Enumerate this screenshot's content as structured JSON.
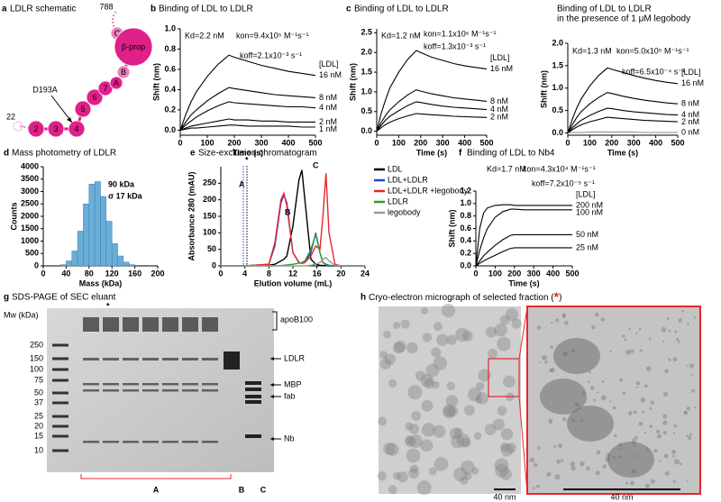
{
  "schematic": {
    "panel": "a",
    "title": "LDLR schematic",
    "domains": [
      "2",
      "3",
      "4",
      "5",
      "6",
      "7",
      "A",
      "B",
      "C",
      "β-prop"
    ],
    "mutation": "D193A",
    "n_term": "22",
    "c_term": "788"
  },
  "chart_data": [
    {
      "type": "line",
      "panel": "b",
      "title": "Binding of LDL to LDLR",
      "x_label": "Time (s)",
      "y_label": "Shift (nm)",
      "legend": "line-end",
      "legend_title": "[LDL]",
      "annotations": [
        "Kd=2.2 nM",
        "kon=9.4x10⁵ M⁻¹s⁻¹",
        "koff=2.1x10⁻³ s⁻¹"
      ],
      "x": [
        0,
        20,
        40,
        60,
        100,
        140,
        180,
        200,
        250,
        300,
        350,
        400,
        450,
        500
      ],
      "xlim": [
        0,
        500
      ],
      "ylim": [
        -0.05,
        1.0
      ],
      "xticks": [
        0,
        100,
        200,
        300,
        400,
        500
      ],
      "yticks": [
        {
          "value": 0,
          "label": "0.0"
        },
        0.2,
        0.4,
        0.6,
        0.8,
        {
          "value": 1,
          "label": "1.0"
        }
      ],
      "series": [
        {
          "name": "16 nM",
          "color": "#000000",
          "values": [
            0,
            0.15,
            0.28,
            0.38,
            0.53,
            0.65,
            0.74,
            0.72,
            0.68,
            0.64,
            0.61,
            0.58,
            0.56,
            0.54
          ]
        },
        {
          "name": "8 nM",
          "color": "#000000",
          "values": [
            0,
            0.08,
            0.15,
            0.2,
            0.29,
            0.36,
            0.42,
            0.41,
            0.39,
            0.37,
            0.35,
            0.34,
            0.33,
            0.32
          ]
        },
        {
          "name": "4 nM",
          "color": "#000000",
          "values": [
            0,
            0.05,
            0.09,
            0.13,
            0.19,
            0.24,
            0.28,
            0.27,
            0.26,
            0.25,
            0.24,
            0.23,
            0.23,
            0.22
          ]
        },
        {
          "name": "2 nM",
          "color": "#000000",
          "values": [
            0,
            0.02,
            0.04,
            0.05,
            0.07,
            0.09,
            0.11,
            0.1,
            0.1,
            0.09,
            0.09,
            0.08,
            0.08,
            0.08
          ]
        },
        {
          "name": "1 nM",
          "color": "#000000",
          "values": [
            0,
            0.01,
            0.02,
            0.02,
            0.03,
            0.04,
            0.05,
            0.05,
            0.04,
            0.04,
            0.04,
            0.04,
            0.03,
            0.03
          ]
        }
      ]
    },
    {
      "type": "line",
      "panel": "c",
      "title": "Binding of LDL to LDLR",
      "x_label": "Time (s)",
      "y_label": "Shift (nm)",
      "legend": "line-end",
      "legend_title": "[LDL]",
      "annotations": [
        "Kd=1.2 nM",
        "kon=1.1x10⁶ M⁻¹s⁻¹",
        "koff=1.3x10⁻³ s⁻¹"
      ],
      "x": [
        0,
        20,
        40,
        60,
        100,
        140,
        180,
        200,
        250,
        300,
        350,
        400,
        450,
        500
      ],
      "xlim": [
        0,
        500
      ],
      "ylim": [
        -0.1,
        2.6
      ],
      "xticks": [
        0,
        100,
        200,
        300,
        400,
        500
      ],
      "yticks": [
        {
          "value": 0,
          "label": "0.0"
        },
        0.5,
        {
          "value": 1,
          "label": "1.0"
        },
        1.5,
        {
          "value": 2,
          "label": "2.0"
        },
        2.5
      ],
      "series": [
        {
          "name": "16 nM",
          "color": "#000000",
          "values": [
            0,
            0.45,
            0.8,
            1.1,
            1.5,
            1.82,
            2.05,
            2.0,
            1.88,
            1.8,
            1.72,
            1.66,
            1.62,
            1.58
          ]
        },
        {
          "name": "8 nM",
          "color": "#000000",
          "values": [
            0,
            0.22,
            0.4,
            0.54,
            0.75,
            0.92,
            1.05,
            1.02,
            0.95,
            0.9,
            0.85,
            0.82,
            0.79,
            0.76
          ]
        },
        {
          "name": "4 nM",
          "color": "#000000",
          "values": [
            0,
            0.15,
            0.28,
            0.38,
            0.52,
            0.65,
            0.75,
            0.73,
            0.68,
            0.64,
            0.61,
            0.59,
            0.57,
            0.55
          ]
        },
        {
          "name": "2 nM",
          "color": "#000000",
          "values": [
            0,
            0.09,
            0.17,
            0.23,
            0.32,
            0.39,
            0.45,
            0.44,
            0.42,
            0.4,
            0.38,
            0.37,
            0.36,
            0.35
          ]
        }
      ]
    },
    {
      "type": "line",
      "title": "Binding of LDL to LDLR",
      "subtitle": "in the presence of 1 μM legobody",
      "x_label": "Time (s)",
      "y_label": "Shift (nm)",
      "legend": "line-end",
      "legend_title": "[LDL]",
      "annotations": [
        "Kd=1.3 nM",
        "kon=5.0x10⁵ M⁻¹s⁻¹",
        "koff=6.5x10⁻⁴ s⁻¹"
      ],
      "x": [
        0,
        20,
        40,
        60,
        100,
        140,
        180,
        200,
        250,
        300,
        350,
        400,
        450,
        500
      ],
      "xlim": [
        0,
        500
      ],
      "ylim": [
        -0.05,
        2.0
      ],
      "xticks": [
        0,
        100,
        200,
        300,
        400,
        500
      ],
      "yticks": [
        {
          "value": 0,
          "label": "0.0"
        },
        0.5,
        {
          "value": 1,
          "label": "1.0"
        },
        1.5,
        {
          "value": 2,
          "label": "2.0"
        }
      ],
      "series": [
        {
          "name": "16 nM",
          "color": "#000000",
          "values": [
            0,
            0.3,
            0.55,
            0.75,
            1.05,
            1.28,
            1.45,
            1.42,
            1.35,
            1.28,
            1.22,
            1.17,
            1.13,
            1.1
          ]
        },
        {
          "name": "8 nM",
          "color": "#000000",
          "values": [
            0,
            0.18,
            0.34,
            0.47,
            0.65,
            0.79,
            0.9,
            0.88,
            0.82,
            0.77,
            0.73,
            0.7,
            0.67,
            0.65
          ]
        },
        {
          "name": "4 nM",
          "color": "#000000",
          "values": [
            0,
            0.11,
            0.2,
            0.28,
            0.39,
            0.48,
            0.55,
            0.54,
            0.5,
            0.47,
            0.45,
            0.43,
            0.41,
            0.4
          ]
        },
        {
          "name": "2 nM",
          "color": "#000000",
          "values": [
            0,
            0.07,
            0.13,
            0.18,
            0.25,
            0.3,
            0.35,
            0.34,
            0.32,
            0.3,
            0.28,
            0.27,
            0.26,
            0.25
          ]
        },
        {
          "name": "0 nM",
          "color": "#888888",
          "values": [
            0,
            0.01,
            0.01,
            0.01,
            0.02,
            0.02,
            0.02,
            0.02,
            0.02,
            0.02,
            0.01,
            0.01,
            0.01,
            0.01
          ]
        }
      ]
    },
    {
      "type": "histogram",
      "panel": "d",
      "title": "Mass photometry of LDLR",
      "x_label": "Mass (kDa)",
      "y_label": "Counts",
      "color": "#6baed6",
      "annotation_color": "#3b7fc4",
      "annotations": [
        "90 kDa",
        "σ 17 kDa"
      ],
      "bins": [
        30,
        40,
        50,
        60,
        70,
        80,
        90,
        100,
        110,
        120,
        130,
        140,
        150,
        160
      ],
      "values": [
        50,
        200,
        600,
        1400,
        2500,
        3300,
        3400,
        2800,
        1800,
        900,
        400,
        150,
        50
      ],
      "xlim": [
        0,
        200
      ],
      "ylim": [
        0,
        4000
      ],
      "xticks": [
        0,
        40,
        80,
        120,
        160,
        200
      ],
      "yticks": [
        0,
        500,
        1000,
        1500,
        2000,
        2500,
        3000,
        3500,
        4000
      ]
    },
    {
      "type": "line",
      "panel": "e",
      "title": "Size-exclusion chromatogram",
      "x_label": "Elution volume (mL)",
      "y_label": "Absorbance 280 (mAU)",
      "legend": "right",
      "annotation_color": "#e8262b",
      "annotations": [
        "A",
        "*",
        "B",
        "C"
      ],
      "x": [
        0,
        4,
        8,
        9,
        10,
        10.5,
        11,
        12,
        13,
        13.5,
        14,
        15,
        15.8,
        16.5,
        17,
        17.5,
        18,
        19,
        20,
        24
      ],
      "xlim": [
        0,
        24
      ],
      "ylim": [
        0,
        300
      ],
      "xticks": [
        0,
        4,
        8,
        12,
        16,
        20,
        24
      ],
      "yticks": [
        0,
        50,
        100,
        150,
        200,
        250
      ],
      "series": [
        {
          "name": "LDL",
          "color": "#000000",
          "values": [
            0,
            0,
            2,
            5,
            15,
            20,
            30,
            120,
            260,
            290,
            200,
            20,
            5,
            2,
            1,
            1,
            0,
            0,
            0,
            0
          ]
        },
        {
          "name": "LDL+LDLR",
          "color": "#2b3fd6",
          "values": [
            0,
            0,
            5,
            60,
            190,
            215,
            190,
            40,
            10,
            8,
            10,
            40,
            100,
            40,
            10,
            5,
            2,
            0,
            0,
            0
          ]
        },
        {
          "name": "LDL+LDLR +legobody",
          "color": "#e8262b",
          "values": [
            0,
            0,
            5,
            70,
            200,
            220,
            180,
            40,
            10,
            8,
            10,
            30,
            60,
            50,
            150,
            280,
            100,
            5,
            0,
            0
          ]
        },
        {
          "name": "LDLR",
          "color": "#2ca02c",
          "values": [
            0,
            0,
            0,
            0,
            1,
            2,
            3,
            5,
            8,
            10,
            15,
            50,
            95,
            40,
            10,
            3,
            1,
            0,
            0,
            0
          ]
        },
        {
          "name": "legobody",
          "color": "#999999",
          "values": [
            0,
            0,
            0,
            0,
            0,
            0,
            0,
            0,
            0,
            0,
            0,
            2,
            5,
            10,
            20,
            25,
            15,
            2,
            0,
            0
          ]
        }
      ]
    },
    {
      "type": "line",
      "panel": "f",
      "title": "Binding of LDL to Nb4",
      "x_label": "Time (s)",
      "y_label": "Shift (nm)",
      "legend": "line-end",
      "legend_title": "[LDL]",
      "annotations": [
        "Kd=1.7 nM",
        "kon=4.3x10⁴ M⁻¹s⁻¹",
        "koff=7.2x10⁻⁵ s⁻¹"
      ],
      "x": [
        0,
        20,
        40,
        60,
        100,
        140,
        180,
        200,
        250,
        300,
        350,
        400,
        450,
        500
      ],
      "xlim": [
        0,
        500
      ],
      "ylim": [
        0,
        1.2
      ],
      "xticks": [
        0,
        100,
        200,
        300,
        400,
        500
      ],
      "yticks": [
        {
          "value": 0,
          "label": "0.0"
        },
        0.2,
        0.4,
        0.6,
        0.8,
        {
          "value": 1,
          "label": "1.0"
        },
        1.2
      ],
      "series": [
        {
          "name": "200 nM",
          "color": "#000000",
          "values": [
            0,
            0.6,
            0.85,
            0.93,
            0.97,
            0.98,
            0.98,
            0.97,
            0.97,
            0.97,
            0.97,
            0.97,
            0.97,
            0.97
          ]
        },
        {
          "name": "100 nM",
          "color": "#000000",
          "values": [
            0,
            0.25,
            0.45,
            0.6,
            0.78,
            0.87,
            0.91,
            0.91,
            0.9,
            0.9,
            0.9,
            0.9,
            0.9,
            0.9
          ]
        },
        {
          "name": "50 nM",
          "color": "#000000",
          "values": [
            0,
            0.08,
            0.16,
            0.22,
            0.33,
            0.42,
            0.49,
            0.5,
            0.5,
            0.5,
            0.5,
            0.5,
            0.5,
            0.5
          ]
        },
        {
          "name": "25 nM",
          "color": "#000000",
          "values": [
            0,
            0.04,
            0.08,
            0.11,
            0.17,
            0.23,
            0.28,
            0.29,
            0.29,
            0.29,
            0.29,
            0.29,
            0.29,
            0.29
          ]
        }
      ]
    }
  ],
  "gel": {
    "panel": "g",
    "title": "SDS-PAGE of SEC eluant",
    "star": "*",
    "mw_label": "Mw (kDa)",
    "markers": [
      250,
      150,
      100,
      75,
      50,
      37,
      25,
      20,
      15,
      10
    ],
    "proteins": [
      "apoB100",
      "LDLR",
      "MBP",
      "fab",
      "Nb"
    ],
    "lanes": [
      "A",
      "B",
      "C"
    ]
  },
  "micrograph": {
    "panel": "h",
    "title": "Cryo-electron micrograph of selected fraction (",
    "star": "*",
    "title_end": ")",
    "scale_bars": [
      "40 nm",
      "40 nm"
    ]
  }
}
